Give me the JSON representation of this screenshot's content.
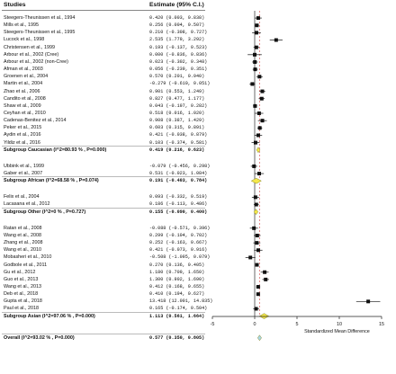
{
  "header": {
    "studies": "Studies",
    "estimate": "Estimate (95% C.I.)"
  },
  "chart_data": {
    "type": "forest",
    "xlabel": "Standardized Mean Difference",
    "xlim": [
      -5,
      15
    ],
    "xticks": [
      "-5",
      "0",
      "5",
      "10",
      "15"
    ],
    "null_line": 0,
    "overall_line": 0.577,
    "rows": [
      {
        "kind": "study",
        "label": "Steegers-Theunissen et al., 1994",
        "est": 0.42,
        "lo": 0.003,
        "hi": 0.838,
        "text": "0.420   (0.003, 0.838)"
      },
      {
        "kind": "study",
        "label": "Mills et al., 1995",
        "est": 0.256,
        "lo": 0.004,
        "hi": 0.507,
        "text": "0.256   (0.004, 0.507)"
      },
      {
        "kind": "study",
        "label": "Steegers-Theunissen et al., 1995",
        "est": 0.21,
        "lo": -0.308,
        "hi": 0.727,
        "text": "0.210   (-0.308, 0.727)"
      },
      {
        "kind": "study",
        "label": "Lucock et al., 1998",
        "est": 2.535,
        "lo": 1.779,
        "hi": 3.292,
        "text": "2.535   (1.779, 3.292)"
      },
      {
        "kind": "study",
        "label": "Christensen et al., 1999",
        "est": 0.193,
        "lo": -0.137,
        "hi": 0.523,
        "text": "0.193   (-0.137, 0.523)"
      },
      {
        "kind": "study",
        "label": "Arbour et al., 2002 (Cree)",
        "est": 0.0,
        "lo": -0.836,
        "hi": 0.836,
        "text": "0.000   (-0.836, 0.836)"
      },
      {
        "kind": "study",
        "label": "Arbour et al., 2002 (non-Cree)",
        "est": 0.023,
        "lo": -0.302,
        "hi": 0.348,
        "text": "0.023   (-0.302, 0.348)"
      },
      {
        "kind": "study",
        "label": "Afman et al., 2003",
        "est": 0.056,
        "lo": -0.239,
        "hi": 0.351,
        "text": "0.056   (-0.239, 0.351)"
      },
      {
        "kind": "study",
        "label": "Groenen et al., 2004",
        "est": 0.57,
        "lo": 0.201,
        "hi": 0.94,
        "text": "0.570   (0.201, 0.940)"
      },
      {
        "kind": "study",
        "label": "Martin et al., 2004",
        "est": -0.279,
        "lo": -0.61,
        "hi": 0.051,
        "text": "-0.279   (-0.610, 0.051)"
      },
      {
        "kind": "study",
        "label": "Zhao et al., 2006",
        "est": 0.901,
        "lo": 0.553,
        "hi": 1.249,
        "text": "0.901   (0.553, 1.249)"
      },
      {
        "kind": "study",
        "label": "Candito et al., 2008",
        "est": 0.827,
        "lo": 0.477,
        "hi": 1.177,
        "text": "0.827   (0.477, 1.177)"
      },
      {
        "kind": "study",
        "label": "Shaw et al., 2009",
        "est": 0.043,
        "lo": -0.197,
        "hi": 0.282,
        "text": "0.043   (-0.197, 0.282)"
      },
      {
        "kind": "study",
        "label": "Ceyhan et al., 2010",
        "est": 0.518,
        "lo": 0.016,
        "hi": 1.02,
        "text": "0.518   (0.016, 1.020)"
      },
      {
        "kind": "study",
        "label": "Cadenas-Benitez et al., 2014",
        "est": 0.908,
        "lo": 0.387,
        "hi": 1.429,
        "text": "0.908   (0.387, 1.429)"
      },
      {
        "kind": "study",
        "label": "Peker et al., 2015",
        "est": 0.603,
        "lo": 0.315,
        "hi": 0.891,
        "text": "0.603   (0.315, 0.891)"
      },
      {
        "kind": "study",
        "label": "Aydin et al., 2016",
        "est": 0.421,
        "lo": -0.038,
        "hi": 0.879,
        "text": "0.421   (-0.038, 0.879)"
      },
      {
        "kind": "study",
        "label": "Yildiz et al., 2016",
        "est": 0.103,
        "lo": -0.374,
        "hi": 0.581,
        "text": "0.103   (-0.374, 0.581)"
      },
      {
        "kind": "subgroup",
        "label": "Subgroup Caucasian (I^2=80.93 % , P=0.000)",
        "est": 0.419,
        "lo": 0.216,
        "hi": 0.623,
        "text": "0.419   (0.216, 0.623)"
      },
      {
        "kind": "study",
        "label": "Ubbink et al., 1999",
        "est": -0.079,
        "lo": -0.456,
        "hi": 0.298,
        "text": "-0.079   (-0.456, 0.298)"
      },
      {
        "kind": "study",
        "label": "Gaber et al., 2007",
        "est": 0.531,
        "lo": -0.023,
        "hi": 1.084,
        "text": "0.531   (-0.023, 1.084)"
      },
      {
        "kind": "subgroup",
        "label": "Subgroup African (I^2=68.58 % , P=0.074)",
        "est": 0.191,
        "lo": -0.403,
        "hi": 0.784,
        "text": "0.191   (-0.403, 0.784)"
      },
      {
        "kind": "study",
        "label": "Felix et al., 2004",
        "est": 0.093,
        "lo": -0.332,
        "hi": 0.519,
        "text": "0.093   (-0.332, 0.519)"
      },
      {
        "kind": "study",
        "label": "Lacasana et al., 2012",
        "est": 0.186,
        "lo": -0.113,
        "hi": 0.486,
        "text": "0.186   (-0.113, 0.486)"
      },
      {
        "kind": "subgroup",
        "label": "Subgroup Other (I^2=0 % , P=0.727)",
        "est": 0.155,
        "lo": -0.09,
        "hi": 0.4,
        "text": "0.155   (-0.090, 0.400)"
      },
      {
        "kind": "study",
        "label": "Ratan et al., 2008",
        "est": -0.088,
        "lo": -0.571,
        "hi": 0.396,
        "text": "-0.088   (-0.571, 0.396)"
      },
      {
        "kind": "study",
        "label": "Wang et al., 2008",
        "est": 0.299,
        "lo": -0.104,
        "hi": 0.702,
        "text": "0.299   (-0.104, 0.702)"
      },
      {
        "kind": "study",
        "label": "Zhang et al., 2008",
        "est": 0.252,
        "lo": -0.163,
        "hi": 0.667,
        "text": "0.252   (-0.163, 0.667)"
      },
      {
        "kind": "study",
        "label": "Wang et al., 2010",
        "est": 0.421,
        "lo": -0.073,
        "hi": 0.916,
        "text": "0.421   (-0.073, 0.916)"
      },
      {
        "kind": "study",
        "label": "Mobasheri et al., 2010",
        "est": -0.508,
        "lo": -1.095,
        "hi": 0.079,
        "text": "-0.508   (-1.095, 0.079)"
      },
      {
        "kind": "study",
        "label": "Godbole et al., 2011",
        "est": 0.27,
        "lo": 0.136,
        "hi": 0.405,
        "text": "0.270   (0.136, 0.405)"
      },
      {
        "kind": "study",
        "label": "Gu et al., 2012",
        "est": 1.18,
        "lo": 0.709,
        "hi": 1.65,
        "text": "1.180   (0.709, 1.650)"
      },
      {
        "kind": "study",
        "label": "Guo et al., 2013",
        "est": 1.3,
        "lo": 0.902,
        "hi": 1.69,
        "text": "1.300   (0.902, 1.690)"
      },
      {
        "kind": "study",
        "label": "Wang et al., 2013",
        "est": 0.412,
        "lo": 0.168,
        "hi": 0.655,
        "text": "0.412   (0.168, 0.655)"
      },
      {
        "kind": "study",
        "label": "Deb et al., 2018",
        "est": 0.41,
        "lo": 0.194,
        "hi": 0.627,
        "text": "0.410   (0.194, 0.627)"
      },
      {
        "kind": "study",
        "label": "Gupta et al., 2018",
        "est": 13.418,
        "lo": 12.001,
        "hi": 14.835,
        "text": "13.418   (12.001, 14.835)"
      },
      {
        "kind": "study",
        "label": "Paul et al., 2018",
        "est": 0.165,
        "lo": -0.174,
        "hi": 0.504,
        "text": "0.165   (-0.174, 0.504)"
      },
      {
        "kind": "subgroup",
        "label": "Subgroup Asian (I^2=97.06 % , P=0.000)",
        "est": 1.113,
        "lo": 0.561,
        "hi": 1.664,
        "text": "1.113   (0.561, 1.664)"
      },
      {
        "kind": "overall",
        "label": "Overall (I^2=93.02 % , P=0.000)",
        "est": 0.577,
        "lo": 0.35,
        "hi": 0.805,
        "text": "0.577   (0.350, 0.805)"
      }
    ],
    "colors": {
      "subgroup_diamond": "#f5e84a",
      "overall_diamond": "#a8d8e8",
      "marker": "#111111",
      "null_line": "#444444",
      "overall_line": "#e07070"
    }
  }
}
